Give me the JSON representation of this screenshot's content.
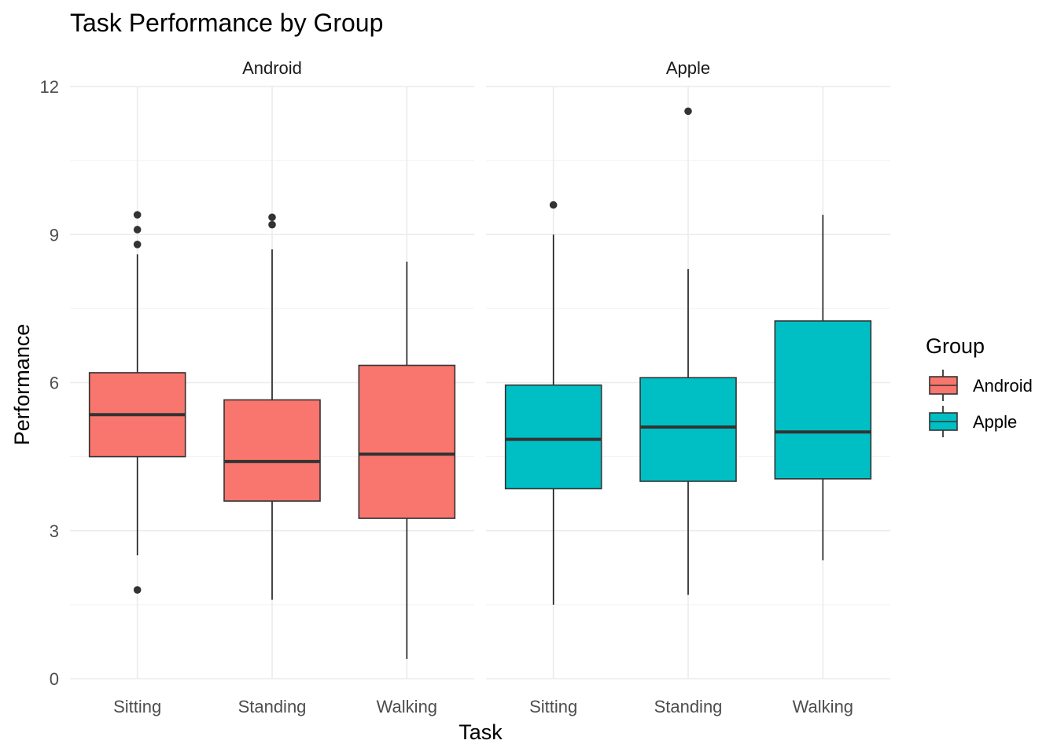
{
  "chart_data": {
    "type": "boxplot",
    "title": "Task Performance by Group",
    "xlabel": "Task",
    "ylabel": "Performance",
    "categories": [
      "Sitting",
      "Standing",
      "Walking"
    ],
    "ylim": [
      0,
      12
    ],
    "yticks": [
      0,
      3,
      6,
      9,
      12
    ],
    "grid": true,
    "legend": {
      "title": "Group",
      "position": "right",
      "entries": [
        {
          "name": "Android",
          "color": "#F8766D"
        },
        {
          "name": "Apple",
          "color": "#00BFC4"
        }
      ]
    },
    "facets": [
      {
        "name": "Android",
        "color": "#F8766D",
        "boxes": [
          {
            "category": "Sitting",
            "whisker_low": 2.5,
            "q1": 4.5,
            "median": 5.35,
            "q3": 6.2,
            "whisker_high": 8.6,
            "outliers": [
              1.8,
              8.8,
              9.1,
              9.4
            ]
          },
          {
            "category": "Standing",
            "whisker_low": 1.6,
            "q1": 3.6,
            "median": 4.4,
            "q3": 5.65,
            "whisker_high": 8.7,
            "outliers": [
              9.2,
              9.35
            ]
          },
          {
            "category": "Walking",
            "whisker_low": 0.4,
            "q1": 3.25,
            "median": 4.55,
            "q3": 6.35,
            "whisker_high": 8.45,
            "outliers": []
          }
        ]
      },
      {
        "name": "Apple",
        "color": "#00BFC4",
        "boxes": [
          {
            "category": "Sitting",
            "whisker_low": 1.5,
            "q1": 3.85,
            "median": 4.85,
            "q3": 5.95,
            "whisker_high": 9.0,
            "outliers": [
              9.6
            ]
          },
          {
            "category": "Standing",
            "whisker_low": 1.7,
            "q1": 4.0,
            "median": 5.1,
            "q3": 6.1,
            "whisker_high": 8.3,
            "outliers": [
              11.5
            ]
          },
          {
            "category": "Walking",
            "whisker_low": 2.4,
            "q1": 4.05,
            "median": 5.0,
            "q3": 7.25,
            "whisker_high": 9.4,
            "outliers": []
          }
        ]
      }
    ]
  }
}
